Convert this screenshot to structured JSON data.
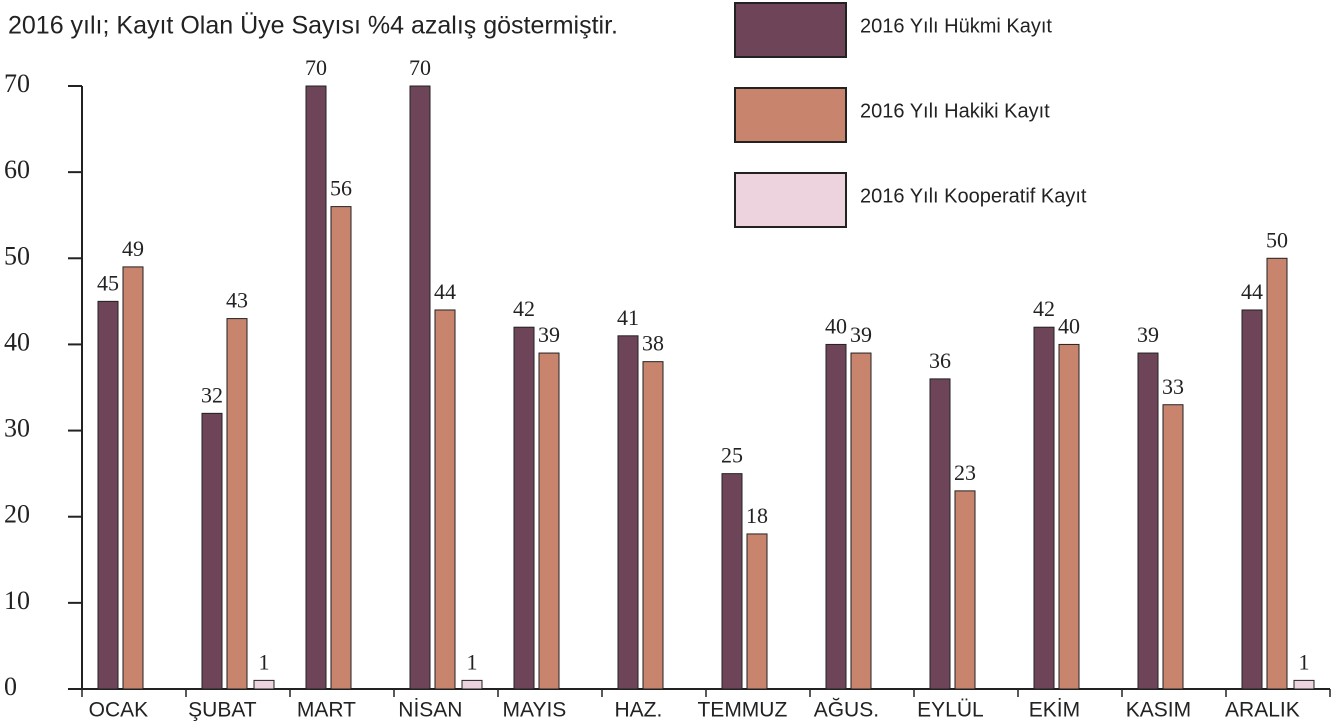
{
  "chart_data": {
    "type": "bar",
    "title": "2016 yılı; Kayıt Olan Üye Sayısı  %4 azalış göstermiştir.",
    "categories": [
      "OCAK",
      "ŞUBAT",
      "MART",
      "NİSAN",
      "MAYIS",
      "HAZ.",
      "TEMMUZ",
      "AĞUS.",
      "EYLÜL",
      "EKİM",
      "KASIM",
      "ARALIK"
    ],
    "series": [
      {
        "name": "2016 Yılı Hükmi Kayıt",
        "color": "#6e4558",
        "values": [
          45,
          32,
          70,
          70,
          42,
          41,
          25,
          40,
          36,
          42,
          39,
          44
        ]
      },
      {
        "name": "2016 Yılı Hakiki Kayıt",
        "color": "#c9846d",
        "values": [
          49,
          43,
          56,
          44,
          39,
          38,
          18,
          39,
          23,
          40,
          33,
          50
        ]
      },
      {
        "name": "2016 Yılı Kooperatif Kayıt",
        "color": "#ecd3dd",
        "values": [
          null,
          1,
          null,
          1,
          null,
          null,
          null,
          null,
          null,
          null,
          null,
          1
        ]
      }
    ],
    "ylim": [
      0,
      70
    ],
    "yticks": [
      0,
      10,
      20,
      30,
      40,
      50,
      60,
      70
    ]
  }
}
